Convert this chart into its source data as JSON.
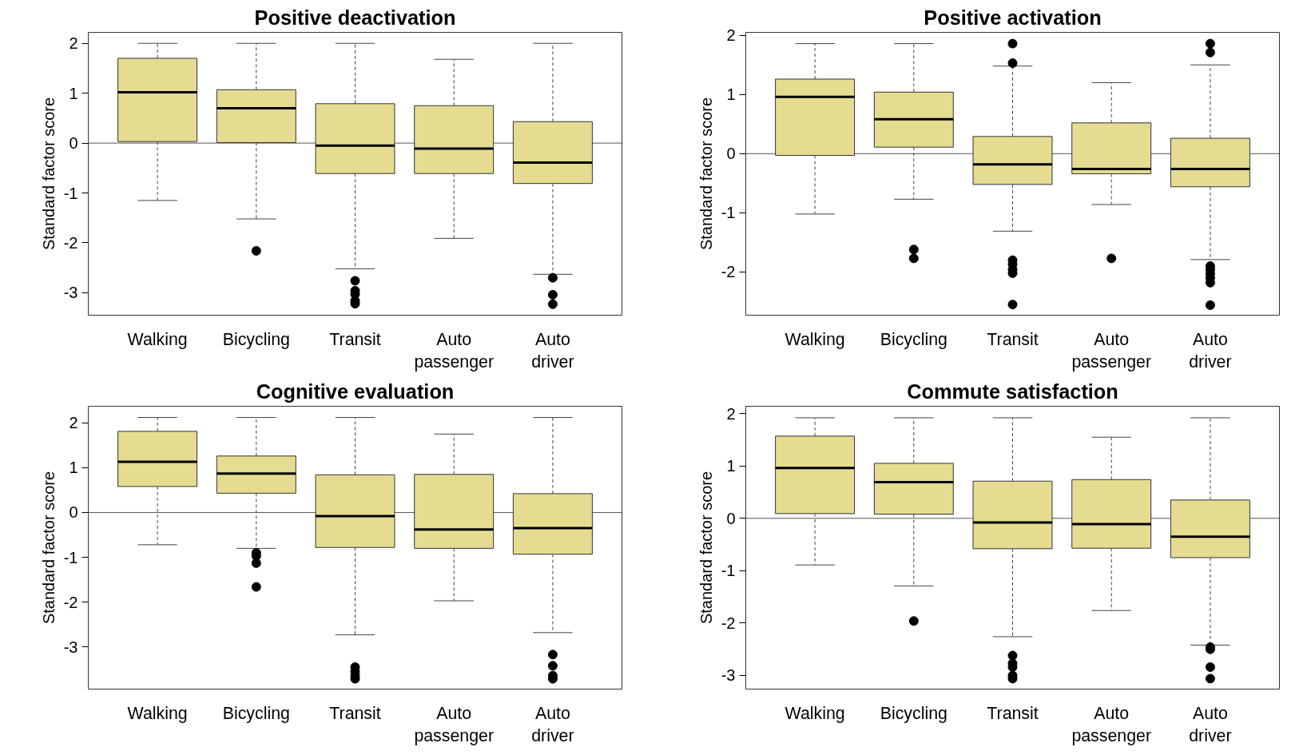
{
  "chart_data": [
    {
      "type": "box",
      "title": "Positive deactivation",
      "ylabel": "Standard factor score",
      "categories": [
        "Walking",
        "Bicycling",
        "Transit",
        "Auto passenger",
        "Auto driver"
      ],
      "color": "#e5dc91",
      "ylim": [
        -3.45,
        2.22
      ],
      "yticks": [
        -3,
        -2,
        -1,
        0,
        1,
        2
      ],
      "grid": false,
      "ref_lines": [
        {
          "axis": "y",
          "value": 0,
          "label": null
        }
      ],
      "boxes": [
        {
          "low": -1.15,
          "q1": 0.03,
          "median": 1.02,
          "q3": 1.7,
          "high": 2.0
        },
        {
          "low": -1.52,
          "q1": 0.01,
          "median": 0.7,
          "q3": 1.07,
          "high": 2.0,
          "outliers": [
            -2.16
          ]
        },
        {
          "low": -2.52,
          "q1": -0.61,
          "median": -0.05,
          "q3": 0.79,
          "high": 2.0,
          "outliers": [
            -2.76,
            -2.96,
            -3.03,
            -3.16,
            -3.22
          ]
        },
        {
          "low": -1.91,
          "q1": -0.61,
          "median": -0.11,
          "q3": 0.75,
          "high": 1.68
        },
        {
          "low": -2.63,
          "q1": -0.81,
          "median": -0.39,
          "q3": 0.43,
          "high": 2.0,
          "outliers": [
            -2.7,
            -3.04,
            -3.23
          ]
        }
      ]
    },
    {
      "type": "box",
      "title": "Positive activation",
      "ylabel": "Standard factor score",
      "categories": [
        "Walking",
        "Bicycling",
        "Transit",
        "Auto passenger",
        "Auto driver"
      ],
      "color": "#e5dc91",
      "ylim": [
        -2.73,
        2.05
      ],
      "yticks": [
        -2,
        -1,
        0,
        1,
        2
      ],
      "grid": false,
      "ref_lines": [
        {
          "axis": "y",
          "value": 0,
          "label": null
        }
      ],
      "boxes": [
        {
          "low": -1.02,
          "q1": -0.03,
          "median": 0.96,
          "q3": 1.26,
          "high": 1.86
        },
        {
          "low": -0.77,
          "q1": 0.11,
          "median": 0.58,
          "q3": 1.04,
          "high": 1.86,
          "outliers": [
            -1.62,
            -1.77
          ]
        },
        {
          "low": -1.31,
          "q1": -0.52,
          "median": -0.18,
          "q3": 0.29,
          "high": 1.48,
          "outliers": [
            1.86,
            1.53,
            -1.8,
            -1.87,
            -1.96,
            -2.02,
            -2.55
          ]
        },
        {
          "low": -0.86,
          "q1": -0.34,
          "median": -0.26,
          "q3": 0.52,
          "high": 1.2,
          "outliers": [
            -1.77
          ]
        },
        {
          "low": -1.79,
          "q1": -0.56,
          "median": -0.26,
          "q3": 0.26,
          "high": 1.5,
          "outliers": [
            1.86,
            1.71,
            -1.9,
            -1.96,
            -2.03,
            -2.1,
            -2.18,
            -2.56
          ]
        }
      ]
    },
    {
      "type": "box",
      "title": "Cognitive evaluation",
      "ylabel": "Standard factor score",
      "categories": [
        "Walking",
        "Bicycling",
        "Transit",
        "Auto passenger",
        "Auto driver"
      ],
      "color": "#e5dc91",
      "ylim": [
        -3.94,
        2.37
      ],
      "yticks": [
        -3,
        -2,
        -1,
        0,
        1,
        2
      ],
      "grid": false,
      "ref_lines": [
        {
          "axis": "y",
          "value": 0,
          "label": null
        }
      ],
      "boxes": [
        {
          "low": -0.72,
          "q1": 0.58,
          "median": 1.13,
          "q3": 1.81,
          "high": 2.12
        },
        {
          "low": -0.8,
          "q1": 0.43,
          "median": 0.87,
          "q3": 1.26,
          "high": 2.12,
          "outliers": [
            -0.9,
            -0.97,
            -1.13,
            -1.66
          ]
        },
        {
          "low": -2.73,
          "q1": -0.78,
          "median": -0.08,
          "q3": 0.84,
          "high": 2.12,
          "outliers": [
            -3.45,
            -3.55,
            -3.65,
            -3.71
          ]
        },
        {
          "low": -1.97,
          "q1": -0.8,
          "median": -0.38,
          "q3": 0.85,
          "high": 1.75
        },
        {
          "low": -2.68,
          "q1": -0.93,
          "median": -0.35,
          "q3": 0.42,
          "high": 2.12,
          "outliers": [
            -3.17,
            -3.42,
            -3.64,
            -3.71
          ]
        }
      ]
    },
    {
      "type": "box",
      "title": "Commute satisfaction",
      "ylabel": "Standard factor score",
      "categories": [
        "Walking",
        "Bicycling",
        "Transit",
        "Auto passenger",
        "Auto driver"
      ],
      "color": "#e5dc91",
      "ylim": [
        -3.26,
        2.14
      ],
      "yticks": [
        -3,
        -2,
        -1,
        0,
        1,
        2
      ],
      "grid": false,
      "ref_lines": [
        {
          "axis": "y",
          "value": 0,
          "label": null
        }
      ],
      "boxes": [
        {
          "low": -0.89,
          "q1": 0.09,
          "median": 0.96,
          "q3": 1.57,
          "high": 1.92
        },
        {
          "low": -1.29,
          "q1": 0.08,
          "median": 0.69,
          "q3": 1.05,
          "high": 1.92,
          "outliers": [
            -1.96
          ]
        },
        {
          "low": -2.26,
          "q1": -0.58,
          "median": -0.08,
          "q3": 0.71,
          "high": 1.92,
          "outliers": [
            -2.62,
            -2.77,
            -2.84,
            -3.0,
            -3.06
          ]
        },
        {
          "low": -1.76,
          "q1": -0.57,
          "median": -0.11,
          "q3": 0.74,
          "high": 1.55
        },
        {
          "low": -2.42,
          "q1": -0.75,
          "median": -0.35,
          "q3": 0.35,
          "high": 1.92,
          "outliers": [
            -2.46,
            -2.5,
            -2.84,
            -3.06
          ]
        }
      ]
    }
  ]
}
